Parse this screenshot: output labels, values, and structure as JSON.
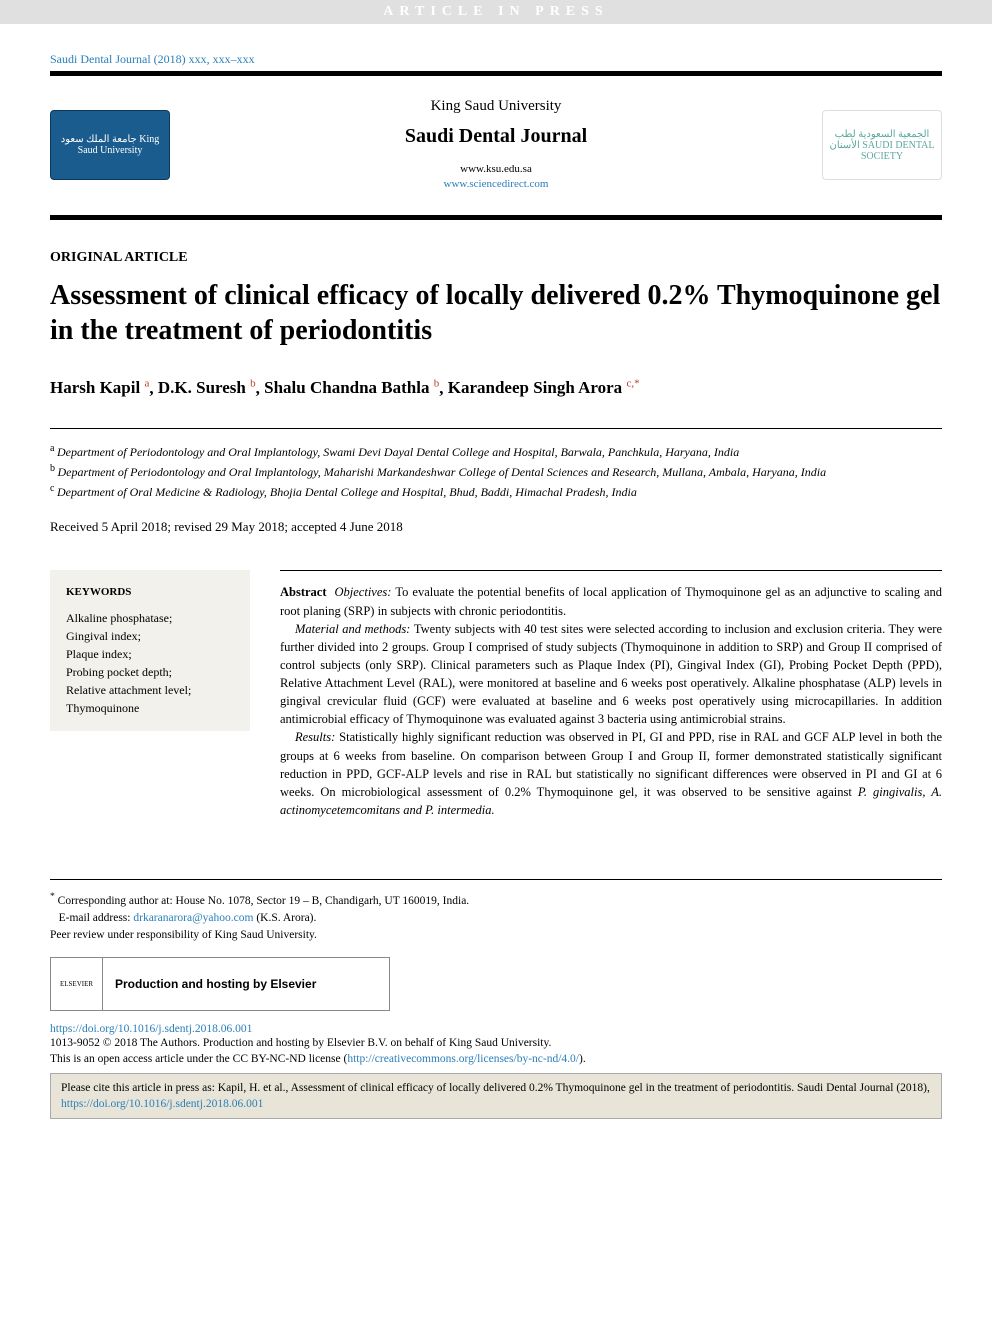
{
  "pressBanner": "ARTICLE IN PRESS",
  "citationLine": "Saudi Dental Journal (2018) xxx, xxx–xxx",
  "header": {
    "university": "King Saud University",
    "journal": "Saudi Dental Journal",
    "link1": "www.ksu.edu.sa",
    "link2": "www.sciencedirect.com",
    "leftLogoText": "جامعة الملك سعود\nKing Saud University",
    "rightLogoText": "الجمعية السعودية لطب الأسنان\nSAUDI DENTAL SOCIETY"
  },
  "articleType": "ORIGINAL ARTICLE",
  "title": "Assessment of clinical efficacy of locally delivered 0.2% Thymoquinone gel in the treatment of periodontitis",
  "authors": [
    {
      "name": "Harsh Kapil",
      "sup": "a"
    },
    {
      "name": "D.K. Suresh",
      "sup": "b"
    },
    {
      "name": "Shalu Chandna Bathla",
      "sup": "b"
    },
    {
      "name": "Karandeep Singh Arora",
      "sup": "c,",
      "star": true
    }
  ],
  "affiliations": [
    {
      "sup": "a",
      "text": "Department of Periodontology and Oral Implantology, Swami Devi Dayal Dental College and Hospital, Barwala, Panchkula, Haryana, India"
    },
    {
      "sup": "b",
      "text": "Department of Periodontology and Oral Implantology, Maharishi Markandeshwar College of Dental Sciences and Research, Mullana, Ambala, Haryana, India"
    },
    {
      "sup": "c",
      "text": "Department of Oral Medicine & Radiology, Bhojia Dental College and Hospital, Bhud, Baddi, Himachal Pradesh, India"
    }
  ],
  "dates": "Received 5 April 2018; revised 29 May 2018; accepted 4 June 2018",
  "keywordsHeading": "KEYWORDS",
  "keywords": [
    "Alkaline phosphatase;",
    "Gingival index;",
    "Plaque index;",
    "Probing pocket depth;",
    "Relative attachment level;",
    "Thymoquinone"
  ],
  "abstract": {
    "label": "Abstract",
    "objectivesLabel": "Objectives:",
    "objectivesText": "To evaluate the potential benefits of local application of Thymoquinone gel as an adjunctive to scaling and root planing (SRP) in subjects with chronic periodontitis.",
    "methodsLabel": "Material and methods:",
    "methodsText": "Twenty subjects with 40 test sites were selected according to inclusion and exclusion criteria. They were further divided into 2 groups. Group I comprised of study subjects (Thymoquinone in addition to SRP) and Group II comprised of control subjects (only SRP). Clinical parameters such as Plaque Index (PI), Gingival Index (GI), Probing Pocket Depth (PPD), Relative Attachment Level (RAL), were monitored at baseline and 6 weeks post operatively. Alkaline phosphatase (ALP) levels in gingival crevicular fluid (GCF) were evaluated at baseline and 6 weeks post operatively using microcapillaries. In addition antimicrobial efficacy of Thymoquinone was evaluated against 3 bacteria using antimicrobial strains.",
    "resultsLabel": "Results:",
    "resultsText1": "Statistically highly significant reduction was observed in PI, GI and PPD, rise in RAL and GCF ALP level in both the groups at 6 weeks from baseline. On comparison between Group I and Group II, former demonstrated statistically significant reduction in PPD, GCF-ALP levels and rise in RAL but statistically no significant differences were observed in PI and GI at 6 weeks. On microbiological assessment of 0.2% Thymoquinone gel, it was observed to be sensitive against ",
    "resultsItalic": "P. gingivalis, A. actinomycetemcomitans and P. intermedia."
  },
  "footer": {
    "corresponding": "Corresponding author at: House No. 1078, Sector 19 – B, Chandigarh, UT 160019, India.",
    "emailLabel": "E-mail address:",
    "email": "drkaranarora@yahoo.com",
    "emailName": "(K.S. Arora).",
    "peerReview": "Peer review under responsibility of King Saud University.",
    "prodHosting": "Production and hosting by Elsevier",
    "elsevierLogo": "ELSEVIER",
    "doi": "https://doi.org/10.1016/j.sdentj.2018.06.001",
    "copyright1": "1013-9052 © 2018 The Authors. Production and hosting by Elsevier B.V. on behalf of King Saud University.",
    "copyright2a": "This is an open access article under the CC BY-NC-ND license (",
    "copyright2link": "http://creativecommons.org/licenses/by-nc-nd/4.0/",
    "copyright2b": ").",
    "citeBox1": "Please cite this article in press as: Kapil, H. et al., Assessment of clinical efficacy of locally delivered 0.2% Thymoquinone gel in the treatment of periodontitis. Saudi Dental Journal (2018), ",
    "citeBoxLink": "https://doi.org/10.1016/j.sdentj.2018.06.001"
  },
  "colors": {
    "linkBlue": "#2a7fba",
    "supRed": "#c0392b",
    "keywordsBg": "#f3f1ec",
    "citeBoxBg": "#e8e5d8",
    "ksuBlue": "#1a5c8e",
    "sdsTeal": "#5aa89e"
  }
}
